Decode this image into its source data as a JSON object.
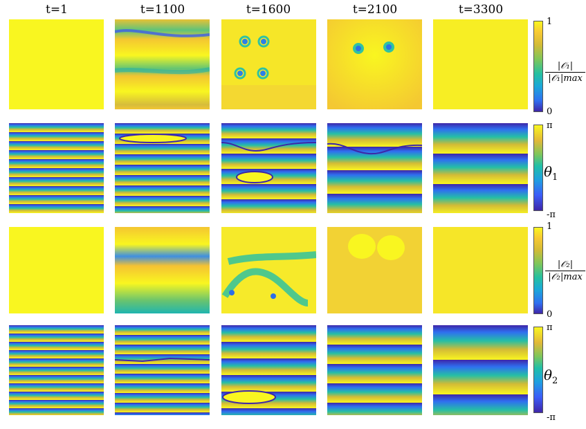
{
  "columns": [
    "t=1",
    "t=1100",
    "t=1600",
    "t=2100",
    "t=3300"
  ],
  "colorbars": [
    {
      "top": "1",
      "bottom": "0",
      "label_num": "|𝒪₁|",
      "label_den": "|𝒪₁|max",
      "kind": "amplitude"
    },
    {
      "top": "π",
      "bottom": "-π",
      "label": "θ",
      "label_sub": "1",
      "kind": "phase"
    },
    {
      "top": "1",
      "bottom": "0",
      "label_num": "|𝒪₂|",
      "label_den": "|𝒪₂|max",
      "kind": "amplitude"
    },
    {
      "top": "π",
      "bottom": "-π",
      "label": "θ",
      "label_sub": "2",
      "kind": "phase"
    }
  ],
  "colors": {
    "yellow": "#f9f620",
    "gold": "#f5c530",
    "teal": "#25bfa5",
    "blue": "#2f6ff0",
    "purple": "#3e26a8"
  }
}
